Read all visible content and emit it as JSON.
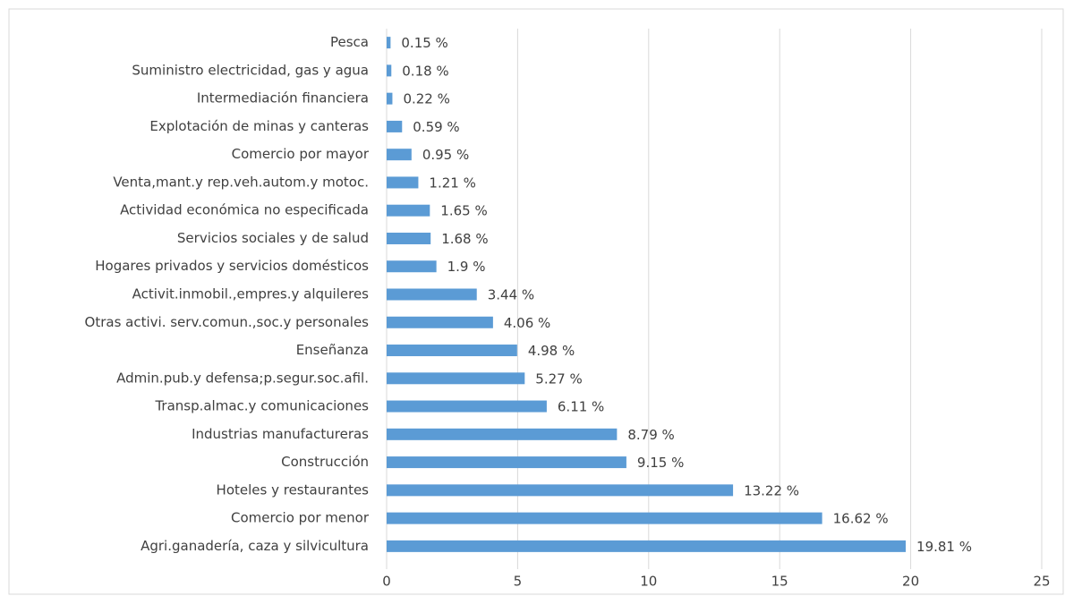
{
  "chart_data": {
    "type": "bar",
    "orientation": "horizontal",
    "categories": [
      "Pesca",
      "Suministro electricidad, gas y agua",
      "Intermediación financiera",
      "Explotación de minas y canteras",
      "Comercio por mayor",
      "Venta,mant.y rep.veh.autom.y motoc.",
      "Actividad económica no especificada",
      "Servicios sociales y de salud",
      "Hogares privados y servicios domésticos",
      "Activit.inmobil.,empres.y alquileres",
      "Otras activi. serv.comun.,soc.y personales",
      "Enseñanza",
      "Admin.pub.y defensa;p.segur.soc.afil.",
      "Transp.almac.y comunicaciones",
      "Industrias manufactureras",
      "Construcción",
      "Hoteles y restaurantes",
      "Comercio por menor",
      "Agri.ganadería, caza y silvicultura"
    ],
    "values": [
      0.15,
      0.18,
      0.22,
      0.59,
      0.95,
      1.21,
      1.65,
      1.68,
      1.9,
      3.44,
      4.06,
      4.98,
      5.27,
      6.11,
      8.79,
      9.15,
      13.22,
      16.62,
      19.81
    ],
    "value_labels": [
      "0.15 %",
      "0.18 %",
      "0.22 %",
      "0.59 %",
      "0.95 %",
      "1.21 %",
      "1.65 %",
      "1.68 %",
      "1.9 %",
      "3.44 %",
      "4.06 %",
      "4.98 %",
      "5.27 %",
      "6.11 %",
      "8.79 %",
      "9.15 %",
      "13.22 %",
      "16.62 %",
      "19.81 %"
    ],
    "color": "#5b9bd5",
    "xlim": [
      0,
      25
    ],
    "xticks": [
      0,
      5,
      10,
      15,
      20,
      25
    ],
    "grid": true
  }
}
